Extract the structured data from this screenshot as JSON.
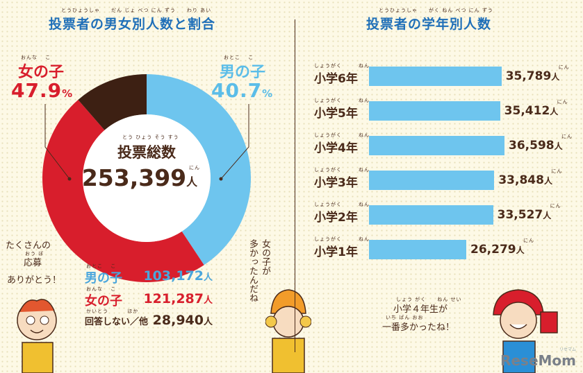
{
  "left_chart": {
    "title": "投票者の男女別人数と割合",
    "title_ruby": "とうひょうしゃ　　だん じょ べつ にん ずう　　わり あい",
    "center_label": "投票総数",
    "center_label_ruby": "とう ひょう そう すう",
    "total": "253,399",
    "unit": "人",
    "unit_ruby": "にん",
    "girl_label": "女の子",
    "girl_label_ruby": "おんな　 こ",
    "girl_pct": "47.9",
    "boy_label": "男の子",
    "boy_label_ruby": "おとこ　 こ",
    "boy_pct": "40.7",
    "pct_unit": "%",
    "counts": [
      {
        "label": "男の子",
        "value": "103,172",
        "color": "#4aa6dc"
      },
      {
        "label": "女の子",
        "value": "121,287",
        "color": "#d81e2c"
      },
      {
        "label": "回答しない／他",
        "value": "28,940",
        "color": "#4a2a1a"
      }
    ],
    "count_ruby_boy": "おとこ　 こ",
    "count_ruby_girl": "おんな　 こ",
    "count_ruby_other": "かいとう　　　 ほか",
    "note_left": [
      "たくさんの",
      "応募",
      "ありがとう！"
    ],
    "note_left_ruby": "おう ぼ",
    "note_right": [
      "女の子が",
      "多かったんだね"
    ],
    "note_right_ruby": [
      "おんな",
      "おお"
    ]
  },
  "chart_data": [
    {
      "type": "pie",
      "title": "投票者の男女別人数と割合",
      "categories": [
        "男の子",
        "女の子",
        "回答しない／他"
      ],
      "values": [
        103172,
        121287,
        28940
      ],
      "percentages": [
        40.7,
        47.9,
        11.4
      ],
      "colors": [
        "#6ec5ee",
        "#d81e2c",
        "#3d2013"
      ],
      "total": 253399
    },
    {
      "type": "bar",
      "orientation": "horizontal",
      "title": "投票者の学年別人数",
      "categories": [
        "小学6年",
        "小学5年",
        "小学4年",
        "小学3年",
        "小学2年",
        "小学1年"
      ],
      "values": [
        35789,
        35412,
        36598,
        33848,
        33527,
        26279
      ],
      "value_labels": [
        "35,789",
        "35,412",
        "36,598",
        "33,848",
        "33,527",
        "26,279"
      ],
      "unit": "人",
      "color": "#6ec5ee"
    }
  ],
  "right_chart": {
    "title": "投票者の学年別人数",
    "title_ruby": "とうひょうしゃ　　がく ねん べつ にん ずう",
    "label_ruby": "しょうがく　　　ねん",
    "unit_ruby": "にん",
    "note": [
      "小学４年生が",
      "一番多かったね！"
    ],
    "note_ruby": [
      "しょう がく　　ねん せい",
      "いち ばん おお"
    ]
  },
  "branding": {
    "logo": "ReseMom",
    "logo_sub": "リセマム"
  }
}
